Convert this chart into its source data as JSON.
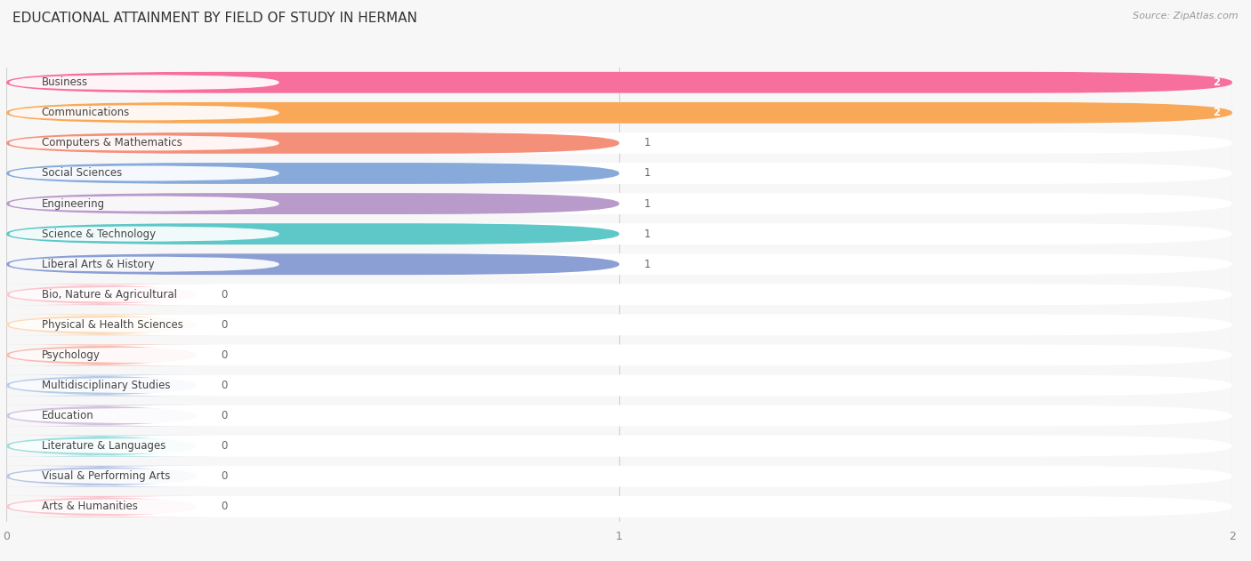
{
  "title": "EDUCATIONAL ATTAINMENT BY FIELD OF STUDY IN HERMAN",
  "source": "Source: ZipAtlas.com",
  "categories": [
    "Business",
    "Communications",
    "Computers & Mathematics",
    "Social Sciences",
    "Engineering",
    "Science & Technology",
    "Liberal Arts & History",
    "Bio, Nature & Agricultural",
    "Physical & Health Sciences",
    "Psychology",
    "Multidisciplinary Studies",
    "Education",
    "Literature & Languages",
    "Visual & Performing Arts",
    "Arts & Humanities"
  ],
  "values": [
    2,
    2,
    1,
    1,
    1,
    1,
    1,
    0,
    0,
    0,
    0,
    0,
    0,
    0,
    0
  ],
  "bar_colors": [
    "#F76F9D",
    "#F9A857",
    "#F4907A",
    "#87AADB",
    "#B89ACB",
    "#5EC8C8",
    "#8B9FD4",
    "#F9A0B0",
    "#F9C490",
    "#F4907A",
    "#87AADB",
    "#B89ACB",
    "#5EC8C8",
    "#8B9FD4",
    "#F9A0B0"
  ],
  "xlim": [
    0,
    2
  ],
  "background_color": "#f7f7f7",
  "bar_bg_color": "#ffffff",
  "title_fontsize": 11,
  "tick_fontsize": 9,
  "label_fontsize": 8.5,
  "source_fontsize": 8
}
